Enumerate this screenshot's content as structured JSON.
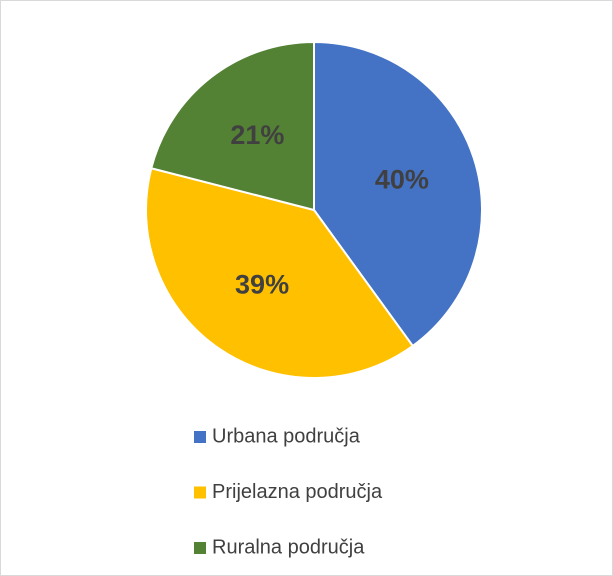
{
  "chart_data": {
    "type": "pie",
    "categories": [
      "Urbana područja",
      "Prijelazna područja",
      "Ruralna područja"
    ],
    "values": [
      40,
      39,
      21
    ],
    "value_labels": [
      "40%",
      "39%",
      "21%"
    ],
    "colors": [
      "#4472c4",
      "#ffc000",
      "#548235"
    ],
    "legend": "bottom"
  }
}
